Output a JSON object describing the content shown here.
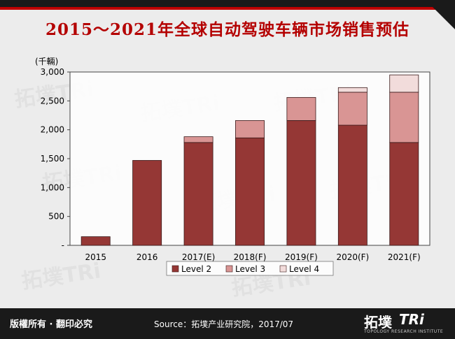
{
  "page": {
    "title": "2015～2021年全球自动驾驶车辆市场销售预估",
    "footer_left": "版權所有 · 翻印必究",
    "source": "Source：拓墣产业研究院，2017/07",
    "logo_cn": "拓墣",
    "logo_en": "TRi",
    "logo_sub": "TOPOLOGY RESEARCH INSTITUTE"
  },
  "chart_data": {
    "type": "bar",
    "stacked": true,
    "categories": [
      "2015",
      "2016",
      "2017(E)",
      "2018(F)",
      "2019(F)",
      "2020(F)",
      "2021(F)"
    ],
    "series": [
      {
        "name": "Level 2",
        "color": "#953735",
        "values": [
          150,
          1470,
          1780,
          1860,
          2160,
          2080,
          1780
        ]
      },
      {
        "name": "Level 3",
        "color": "#d99594",
        "values": [
          0,
          0,
          100,
          300,
          400,
          570,
          870
        ]
      },
      {
        "name": "Level 4",
        "color": "#f2dcdb",
        "values": [
          0,
          0,
          0,
          0,
          0,
          80,
          300
        ]
      }
    ],
    "unit_label": "(千輛)",
    "ylim": [
      0,
      3000
    ],
    "yticks": [
      "-",
      "500",
      "1,000",
      "1,500",
      "2,000",
      "2,500",
      "3,000"
    ],
    "ytick_values": [
      0,
      500,
      1000,
      1500,
      2000,
      2500,
      3000
    ],
    "legend_position": "bottom",
    "grid": false
  }
}
